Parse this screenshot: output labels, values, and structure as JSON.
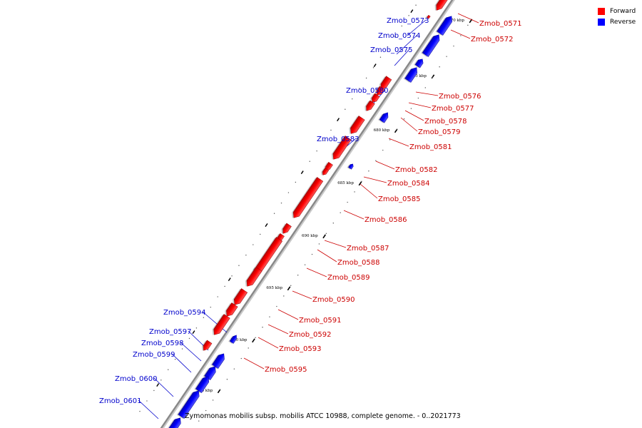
{
  "caption": "Zymomonas mobilis subsp. mobilis ATCC 10988, complete genome. - 0..2021773",
  "legend": [
    {
      "label": "Forward",
      "color": "#ff0000"
    },
    {
      "label": "Reverse",
      "color": "#0000ff"
    }
  ],
  "colors": {
    "forward": "#ff0000",
    "reverse": "#0000ff",
    "forward_label": "#cc0000",
    "reverse_label": "#0000cc",
    "axis": "#888888"
  },
  "ticks": [
    "670 kbp",
    "675 kbp",
    "680 kbp",
    "685 kbp",
    "690 kbp",
    "695 kbp",
    "700 kbp",
    "705 kbp"
  ],
  "genes": [
    {
      "name": "Zmob_0571",
      "strand": "forward"
    },
    {
      "name": "Zmob_0572",
      "strand": "forward"
    },
    {
      "name": "Zmob_0573",
      "strand": "reverse"
    },
    {
      "name": "Zmob_0574",
      "strand": "reverse"
    },
    {
      "name": "Zmob_0575",
      "strand": "reverse"
    },
    {
      "name": "Zmob_0576",
      "strand": "forward"
    },
    {
      "name": "Zmob_0577",
      "strand": "forward"
    },
    {
      "name": "Zmob_0578",
      "strand": "forward"
    },
    {
      "name": "Zmob_0579",
      "strand": "forward"
    },
    {
      "name": "Zmob_0580",
      "strand": "reverse"
    },
    {
      "name": "Zmob_0581",
      "strand": "forward"
    },
    {
      "name": "Zmob_0582",
      "strand": "forward"
    },
    {
      "name": "Zmob_0583",
      "strand": "reverse"
    },
    {
      "name": "Zmob_0584",
      "strand": "forward"
    },
    {
      "name": "Zmob_0585",
      "strand": "forward"
    },
    {
      "name": "Zmob_0586",
      "strand": "forward"
    },
    {
      "name": "Zmob_0587",
      "strand": "forward"
    },
    {
      "name": "Zmob_0588",
      "strand": "forward"
    },
    {
      "name": "Zmob_0589",
      "strand": "forward"
    },
    {
      "name": "Zmob_0590",
      "strand": "forward"
    },
    {
      "name": "Zmob_0591",
      "strand": "forward"
    },
    {
      "name": "Zmob_0592",
      "strand": "forward"
    },
    {
      "name": "Zmob_0593",
      "strand": "forward"
    },
    {
      "name": "Zmob_0594",
      "strand": "reverse"
    },
    {
      "name": "Zmob_0595",
      "strand": "forward"
    },
    {
      "name": "Zmob_0597",
      "strand": "reverse"
    },
    {
      "name": "Zmob_0598",
      "strand": "reverse"
    },
    {
      "name": "Zmob_0599",
      "strand": "reverse"
    },
    {
      "name": "Zmob_0600",
      "strand": "reverse"
    },
    {
      "name": "Zmob_0601",
      "strand": "reverse"
    }
  ]
}
